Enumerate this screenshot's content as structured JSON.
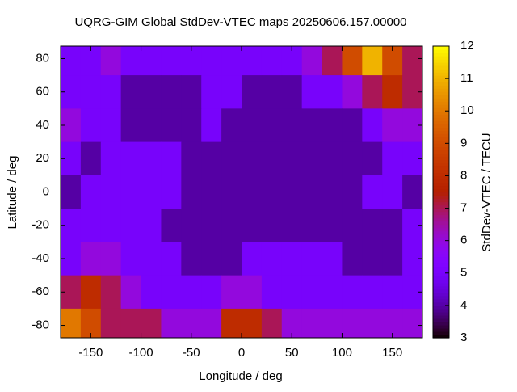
{
  "chart_data": {
    "type": "heatmap",
    "title": "UQRG-GIM Global StdDev-VTEC maps 20250606.157.00000",
    "x_label": "Longitude / deg",
    "y_label": "Latitude / deg",
    "colorbar_label": "StdDev-VTEC / TECU",
    "colormap": "gnuplot",
    "x": [
      -170,
      -150,
      -130,
      -110,
      -90,
      -70,
      -50,
      -30,
      -10,
      10,
      30,
      50,
      70,
      90,
      110,
      130,
      150,
      170
    ],
    "y": [
      80,
      60,
      40,
      20,
      0,
      -20,
      -40,
      -60,
      -80
    ],
    "z": [
      [
        5,
        5,
        6,
        5,
        5,
        5,
        5,
        5,
        5,
        5,
        5,
        5,
        6,
        7,
        9,
        11,
        9,
        7
      ],
      [
        5,
        5,
        5,
        4,
        4,
        4,
        4,
        5,
        5,
        4,
        4,
        4,
        5,
        5,
        6,
        7,
        8,
        7
      ],
      [
        6,
        5,
        5,
        4,
        4,
        4,
        4,
        5,
        4,
        4,
        4,
        4,
        4,
        4,
        4,
        5,
        6,
        6
      ],
      [
        5,
        4,
        5,
        5,
        5,
        5,
        4,
        4,
        4,
        4,
        4,
        4,
        4,
        4,
        4,
        4,
        5,
        5
      ],
      [
        4,
        5,
        5,
        5,
        5,
        5,
        4,
        4,
        4,
        4,
        4,
        4,
        4,
        4,
        4,
        5,
        5,
        4
      ],
      [
        5,
        5,
        5,
        5,
        5,
        4,
        4,
        4,
        4,
        4,
        4,
        4,
        4,
        4,
        4,
        4,
        4,
        5
      ],
      [
        5,
        6,
        6,
        5,
        5,
        5,
        4,
        4,
        4,
        5,
        5,
        5,
        5,
        5,
        4,
        4,
        4,
        5
      ],
      [
        7,
        8,
        7,
        6,
        5,
        5,
        5,
        5,
        6,
        6,
        5,
        5,
        5,
        5,
        5,
        5,
        5,
        5
      ],
      [
        10,
        9,
        7,
        7,
        7,
        6,
        6,
        6,
        8,
        8,
        7,
        6,
        6,
        6,
        6,
        6,
        6,
        6
      ]
    ],
    "xlim": [
      -180,
      180
    ],
    "ylim": [
      -87.5,
      87.5
    ],
    "xticks": [
      -150,
      -100,
      -50,
      0,
      50,
      100,
      150
    ],
    "yticks": [
      -80,
      -60,
      -40,
      -20,
      0,
      20,
      40,
      60,
      80
    ],
    "clim": [
      3,
      12
    ],
    "cticks": [
      3,
      4,
      5,
      6,
      7,
      8,
      9,
      10,
      11,
      12
    ]
  }
}
